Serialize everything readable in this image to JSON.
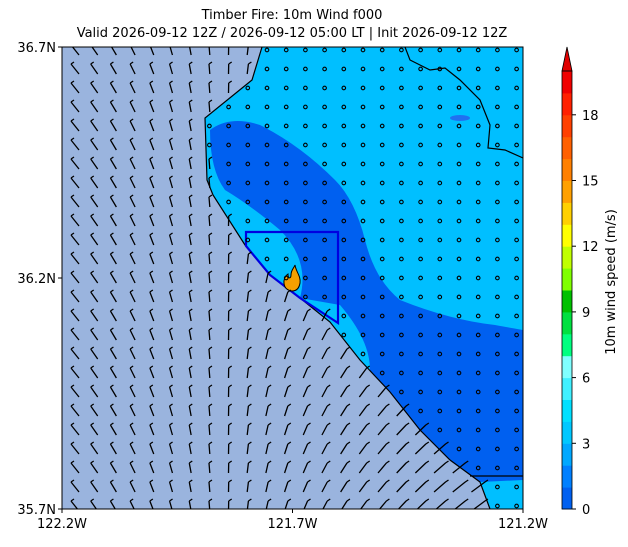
{
  "map": {
    "title": "Timber Fire: 10m Wind f000",
    "subtitle": "Valid 2026-09-12 12Z / 2026-09-12 05:00 LT | Init 2026-09-12 12Z",
    "xlim": [
      -122.2,
      -121.2
    ],
    "ylim": [
      35.7,
      36.7
    ],
    "xticks": [
      {
        "value": -122.2,
        "label": "122.2W"
      },
      {
        "value": -121.7,
        "label": "121.7W"
      },
      {
        "value": -121.2,
        "label": "121.2W"
      }
    ],
    "yticks": [
      {
        "value": 35.7,
        "label": "35.7N"
      },
      {
        "value": 36.2,
        "label": "36.2N"
      },
      {
        "value": 36.7,
        "label": "36.7N"
      }
    ],
    "colorbar": {
      "label": "10m wind speed (m/s)",
      "lim": [
        0,
        20
      ],
      "ticks": [
        0,
        3,
        6,
        9,
        12,
        15,
        18
      ],
      "colors": [
        "#0060f0",
        "#0080ff",
        "#00a8ff",
        "#00c8ff",
        "#00e0ff",
        "#40f0ff",
        "#80ffff",
        "#00ff80",
        "#00e040",
        "#00c000",
        "#80ff00",
        "#c0ff00",
        "#ffff00",
        "#ffd000",
        "#ffa000",
        "#ff8000",
        "#ff6000",
        "#ff4000",
        "#ff2000",
        "#f00000"
      ],
      "extend_color": "#e00000"
    }
  }
}
